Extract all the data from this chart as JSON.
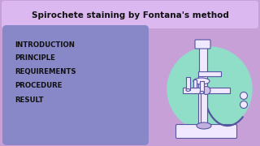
{
  "bg_color": "#c8a0d8",
  "title_text": "Spirochete staining by Fontana's method",
  "title_bg": "#dbb8f0",
  "title_color": "#111111",
  "left_box_bg": "#8888c8",
  "menu_items": [
    "INTRODUCTION",
    "PRINCIPLE",
    "REQUIREMENTS",
    "PROCEDURE",
    "RESULT"
  ],
  "menu_color": "#111111",
  "microscope_circle_color": "#90ddc8",
  "microscope_body_color": "#f0e8ff",
  "microscope_line_color": "#5555a0",
  "title_fontsize": 7.5,
  "menu_fontsize": 6.2
}
